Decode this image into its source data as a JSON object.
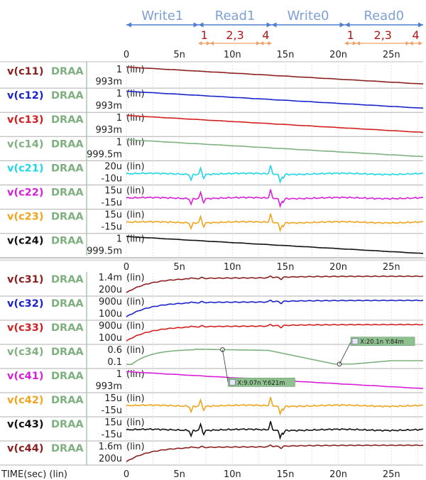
{
  "chart_data": {
    "type": "line",
    "x_unit": "TIME(sec) (lin)",
    "x_range": [
      0,
      28
    ],
    "x_ticks": [
      "0",
      "5n",
      "10n",
      "15n",
      "20n",
      "25n"
    ],
    "x_tick_values": [
      0,
      5,
      10,
      15,
      20,
      25
    ],
    "grid": true,
    "phases": [
      {
        "label": "Write1",
        "start": 0,
        "end": 6.8
      },
      {
        "label": "Read1",
        "start": 6.8,
        "end": 13.7
      },
      {
        "label": "Write0",
        "start": 13.7,
        "end": 20.6
      },
      {
        "label": "Read0",
        "start": 20.6,
        "end": 28
      }
    ],
    "subphases": [
      {
        "label": "1",
        "start": 6.8,
        "end": 7.9
      },
      {
        "label": "2,3",
        "start": 7.9,
        "end": 12.6
      },
      {
        "label": "4",
        "start": 12.6,
        "end": 13.7
      },
      {
        "label": "1",
        "start": 20.6,
        "end": 21.7
      },
      {
        "label": "2,3",
        "start": 21.7,
        "end": 26.7
      },
      {
        "label": "4",
        "start": 26.7,
        "end": 27.9
      }
    ],
    "top_panels": [
      {
        "node": "v(c11)",
        "model": "DRAA",
        "color": "#8b2020",
        "y_top": "1",
        "y_bottom": "993m",
        "scale": "(lin)",
        "shape": "decline",
        "y_start": 1.0,
        "y_end": 0.9935
      },
      {
        "node": "v(c12)",
        "model": "DRAA",
        "color": "#1a23c8",
        "y_top": "1",
        "y_bottom": "993m",
        "scale": "(lin)",
        "shape": "decline",
        "y_start": 1.0,
        "y_end": 0.9938
      },
      {
        "node": "v(c13)",
        "model": "DRAA",
        "color": "#d21f1f",
        "y_top": "1",
        "y_bottom": "993m",
        "scale": "(lin)",
        "shape": "decline",
        "y_start": 1.0,
        "y_end": 0.9935
      },
      {
        "node": "v(c14)",
        "model": "DRAA",
        "color": "#7fb07f",
        "y_top": "1",
        "y_bottom": "999.5m",
        "scale": "(lin)",
        "shape": "decline",
        "y_start": 1.0,
        "y_end": 0.9996
      },
      {
        "node": "v(c21)",
        "model": "DRAA",
        "color": "#1fd6e6",
        "y_top": "20u",
        "y_bottom": "-10u",
        "scale": "(lin)",
        "shape": "spiky"
      },
      {
        "node": "v(c22)",
        "model": "DRAA",
        "color": "#d81fd8",
        "y_top": "15u",
        "y_bottom": "-15u",
        "scale": "(lin)",
        "shape": "spiky"
      },
      {
        "node": "v(c23)",
        "model": "DRAA",
        "color": "#f0a41c",
        "y_top": "15u",
        "y_bottom": "-15u",
        "scale": "(lin)",
        "shape": "spiky"
      },
      {
        "node": "v(c24)",
        "model": "DRAA",
        "color": "#111111",
        "y_top": "1",
        "y_bottom": "999.5m",
        "scale": "(lin)",
        "shape": "decline",
        "y_start": 1.0,
        "y_end": 0.99955
      }
    ],
    "bottom_panels": [
      {
        "node": "v(c31)",
        "model": "DRAA",
        "color": "#8b2020",
        "y_top": "1.4m",
        "y_bottom": "200u",
        "scale": "(lin)",
        "shape": "rise"
      },
      {
        "node": "v(c32)",
        "model": "DRAA",
        "color": "#1a23c8",
        "y_top": "900u",
        "y_bottom": "100u",
        "scale": "(lin)",
        "shape": "rise"
      },
      {
        "node": "v(c33)",
        "model": "DRAA",
        "color": "#d21f1f",
        "y_top": "900u",
        "y_bottom": "100u",
        "scale": "(lin)",
        "shape": "rise"
      },
      {
        "node": "v(c34)",
        "model": "DRAA",
        "color": "#7fb07f",
        "y_top": "0.6",
        "y_bottom": "0.1",
        "scale": "(lin)",
        "shape": "write-pulse"
      },
      {
        "node": "v(c41)",
        "model": "DRAA",
        "color": "#d81fd8",
        "y_top": "1",
        "y_bottom": "993m",
        "scale": "(lin)",
        "shape": "decline",
        "y_start": 1.0,
        "y_end": 0.9935
      },
      {
        "node": "v(c42)",
        "model": "DRAA",
        "color": "#f0a41c",
        "y_top": "15u",
        "y_bottom": "-15u",
        "scale": "(lin)",
        "shape": "spiky"
      },
      {
        "node": "v(c43)",
        "model": "DRAA",
        "color": "#111111",
        "y_top": "15u",
        "y_bottom": "-15u",
        "scale": "(lin)",
        "shape": "spiky"
      },
      {
        "node": "v(c44)",
        "model": "DRAA",
        "color": "#8b2020",
        "y_top": "1.6m",
        "y_bottom": "200u",
        "scale": "(lin)",
        "shape": "rise"
      }
    ],
    "annotations": [
      {
        "label": "X:9.07n Y:621m",
        "x": 9.07,
        "y": 0.621,
        "panel": "v(c34)"
      },
      {
        "label": "X:20.1n Y:84m",
        "x": 20.1,
        "y": 0.084,
        "panel": "v(c34)"
      }
    ]
  }
}
